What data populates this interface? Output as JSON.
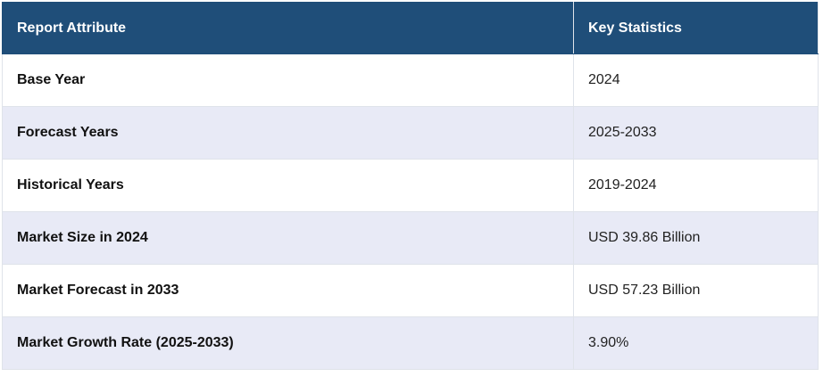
{
  "table": {
    "header": [
      "Report Attribute",
      "Key Statistics"
    ],
    "rows": [
      [
        "Base Year",
        "2024"
      ],
      [
        "Forecast Years",
        "2025-2033"
      ],
      [
        "Historical Years",
        "2019-2024"
      ],
      [
        "Market Size in 2024",
        "USD 39.86 Billion"
      ],
      [
        "Market Forecast in 2033",
        "USD 57.23 Billion"
      ],
      [
        "Market Growth Rate (2025-2033)",
        "3.90%"
      ]
    ]
  }
}
